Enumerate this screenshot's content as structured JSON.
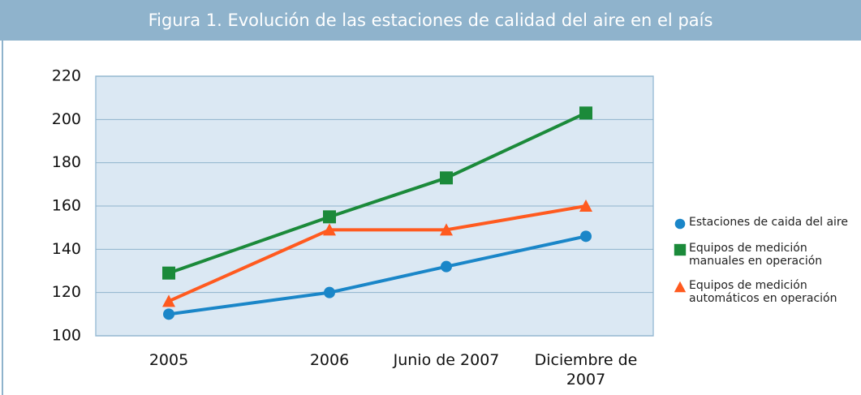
{
  "chart_data": {
    "type": "line",
    "title": "Figura 1. Evolución de las estaciones de calidad del aire en el país",
    "categories": [
      "2005",
      "2006",
      "Junio de 2007",
      "Diciembre de 2007"
    ],
    "series": [
      {
        "name": "Estaciones de caida del aire",
        "color": "#1a86c8",
        "marker": "circle",
        "values": [
          110,
          120,
          132,
          146
        ]
      },
      {
        "name": "Equipos de medición manuales en operación",
        "color": "#1b8a3a",
        "marker": "square",
        "values": [
          129,
          155,
          173,
          203
        ]
      },
      {
        "name": "Equipos de medición automáticos en operación",
        "color": "#ff5a1f",
        "marker": "triangle",
        "values": [
          116,
          149,
          149,
          160
        ]
      }
    ],
    "ylim": [
      100,
      220
    ],
    "yticks": [
      100,
      120,
      140,
      160,
      180,
      200,
      220
    ],
    "grid": true,
    "legend": "right"
  }
}
